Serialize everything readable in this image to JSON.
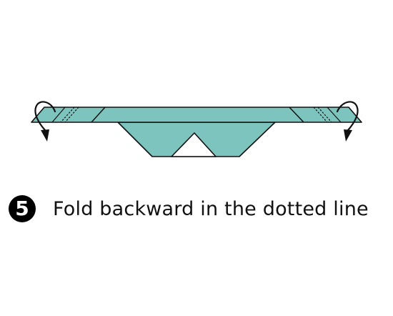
{
  "step": {
    "number": "5",
    "instruction": "Fold backward in the dotted line"
  },
  "colors": {
    "paper": "#7cc4bd",
    "outline": "#111111",
    "background": "#ffffff"
  },
  "icons": {
    "left_arrow": "curved-fold-arrow-icon",
    "right_arrow": "curved-fold-arrow-icon"
  }
}
